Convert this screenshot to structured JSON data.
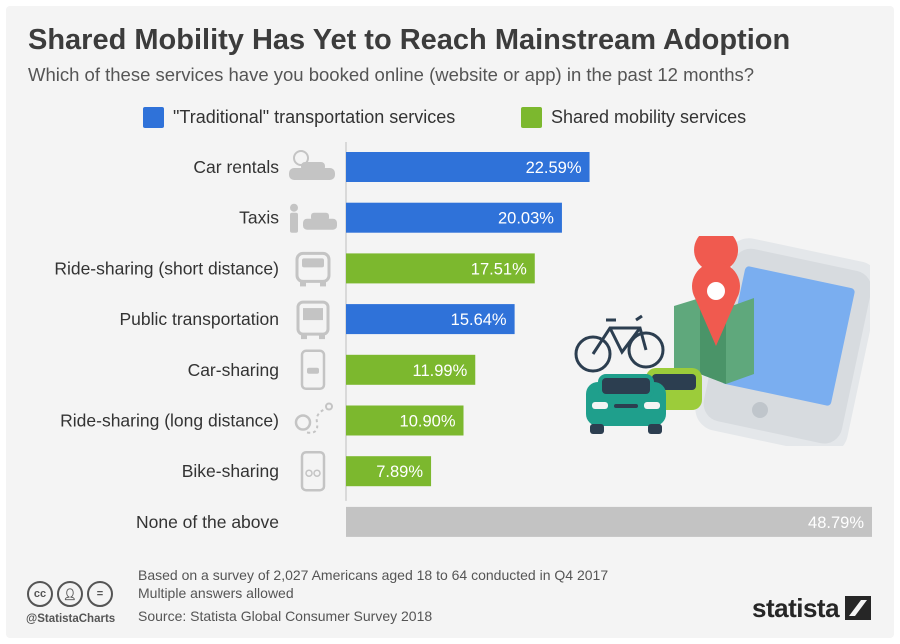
{
  "title": "Shared Mobility Has Yet to Reach Mainstream Adoption",
  "subtitle": "Which of these services have you booked online (website or app) in the past 12 months?",
  "legend": [
    {
      "label": "\"Traditional\" transportation services",
      "color": "#2f72d9"
    },
    {
      "label": "Shared mobility services",
      "color": "#7cb82e"
    }
  ],
  "chart_data": {
    "type": "bar",
    "orientation": "horizontal",
    "xlim": [
      0,
      48.79
    ],
    "value_suffix": "%",
    "grid": false,
    "legend_position": "top",
    "bars": [
      {
        "category": "Car rentals",
        "value": 22.59,
        "label": "22.59%",
        "group": "traditional",
        "icon": "car-rental-icon"
      },
      {
        "category": "Taxis",
        "value": 20.03,
        "label": "20.03%",
        "group": "traditional",
        "icon": "taxi-icon"
      },
      {
        "category": "Ride-sharing (short distance)",
        "value": 17.51,
        "label": "17.51%",
        "group": "shared",
        "icon": "van-icon"
      },
      {
        "category": "Public transportation",
        "value": 15.64,
        "label": "15.64%",
        "group": "traditional",
        "icon": "bus-icon"
      },
      {
        "category": "Car-sharing",
        "value": 11.99,
        "label": "11.99%",
        "group": "shared",
        "icon": "phone-car-icon"
      },
      {
        "category": "Ride-sharing (long distance)",
        "value": 10.9,
        "label": "10.90%",
        "group": "shared",
        "icon": "route-pin-icon"
      },
      {
        "category": "Bike-sharing",
        "value": 7.89,
        "label": "7.89%",
        "group": "shared",
        "icon": "phone-bike-icon"
      },
      {
        "category": "None of the above",
        "value": 48.79,
        "label": "48.79%",
        "group": "none",
        "icon": ""
      }
    ],
    "colors": {
      "traditional": "#2f72d9",
      "shared": "#7cb82e",
      "none": "#c3c3c3"
    }
  },
  "illustration": {
    "icons": [
      "bicycle-icon",
      "map-pin-icon",
      "smartphone-icon",
      "car-icon"
    ]
  },
  "footer": {
    "note1": "Based on a survey of 2,027 Americans aged 18 to 64 conducted in Q4 2017",
    "note2": "Multiple answers allowed",
    "source": "Source: Statista Global Consumer Survey 2018",
    "handle": "@StatistaCharts",
    "brand": "statista"
  }
}
